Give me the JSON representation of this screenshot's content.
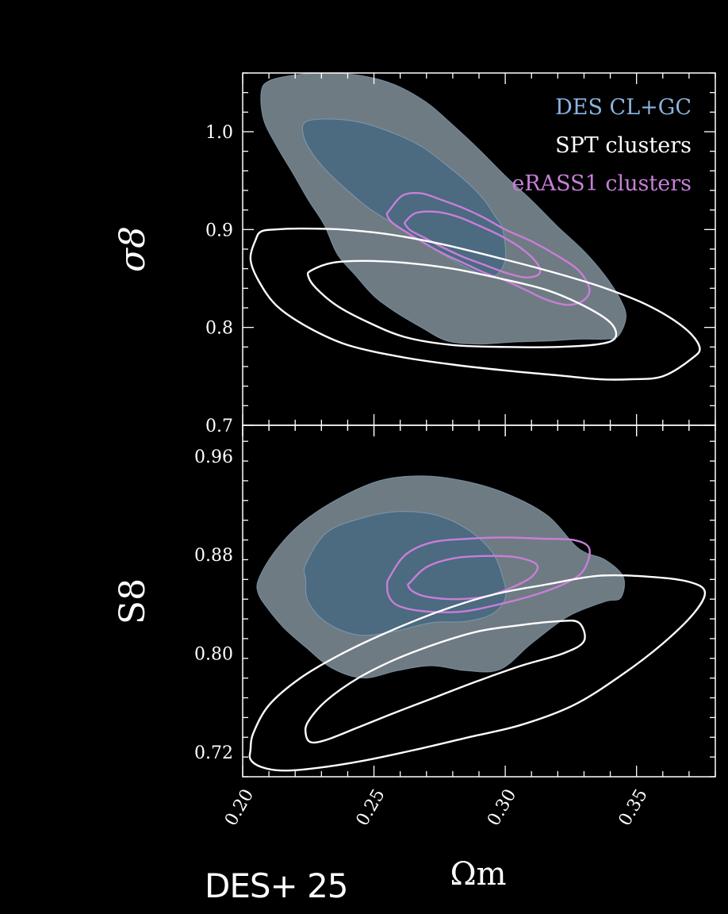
{
  "colors": {
    "background": "#000000",
    "des_outer": "#6f7b83",
    "des_inner": "#4c6a80",
    "des_edge": "#8fb0cc",
    "spt": "#ffffff",
    "erass1": "#c77fd8",
    "axis": "#ffffff"
  },
  "credit": "DES+ 25",
  "chart_data": [
    {
      "type": "contour",
      "title": "",
      "ylabel": "σ8",
      "xlim": [
        0.2,
        0.38
      ],
      "ylim": [
        0.7,
        1.06
      ],
      "yticks": [
        0.7,
        0.8,
        0.9,
        1.0
      ],
      "ytick_labels": [
        "0.7",
        "0.8",
        "0.9",
        "1.0"
      ],
      "legend": {
        "position": "top-right",
        "entries": [
          {
            "label": "DES CL+GC",
            "color": "#8ab4e0"
          },
          {
            "label": "SPT clusters",
            "color": "#ffffff"
          },
          {
            "label": "eRASS1 clusters",
            "color": "#c77fd8"
          }
        ]
      },
      "series": [
        {
          "name": "DES CL+GC 95%",
          "style": "fill",
          "color": "#6f7b83",
          "x": [
            0.207,
            0.21,
            0.22,
            0.232,
            0.246,
            0.258,
            0.27,
            0.28,
            0.29,
            0.3,
            0.31,
            0.32,
            0.33,
            0.338,
            0.344,
            0.346,
            0.343,
            0.338,
            0.328,
            0.316,
            0.303,
            0.29,
            0.278,
            0.268,
            0.258,
            0.25,
            0.243,
            0.236,
            0.231,
            0.225,
            0.219,
            0.213,
            0.208
          ],
          "y": [
            1.04,
            1.052,
            1.058,
            1.06,
            1.057,
            1.048,
            1.03,
            1.007,
            0.982,
            0.955,
            0.93,
            0.903,
            0.878,
            0.853,
            0.828,
            0.81,
            0.791,
            0.788,
            0.788,
            0.786,
            0.785,
            0.783,
            0.786,
            0.8,
            0.816,
            0.832,
            0.853,
            0.875,
            0.905,
            0.93,
            0.958,
            0.985,
            1.012
          ]
        },
        {
          "name": "DES CL+GC 68%",
          "style": "fill",
          "color": "#4c6a80",
          "x": [
            0.224,
            0.232,
            0.244,
            0.256,
            0.268,
            0.278,
            0.286,
            0.292,
            0.296,
            0.299,
            0.3,
            0.296,
            0.288,
            0.278,
            0.268,
            0.258,
            0.248,
            0.24,
            0.232,
            0.226,
            0.223
          ],
          "y": [
            1.01,
            1.013,
            1.01,
            1.0,
            0.985,
            0.965,
            0.947,
            0.93,
            0.914,
            0.9,
            0.87,
            0.853,
            0.858,
            0.872,
            0.888,
            0.905,
            0.922,
            0.94,
            0.96,
            0.98,
            0.998
          ]
        },
        {
          "name": "eRASS1 clusters 95%",
          "style": "line",
          "color": "#c77fd8",
          "x": [
            0.256,
            0.261,
            0.268,
            0.276,
            0.284,
            0.292,
            0.3,
            0.31,
            0.32,
            0.328,
            0.332,
            0.33,
            0.324,
            0.316,
            0.308,
            0.3,
            0.292,
            0.284,
            0.276,
            0.268,
            0.262,
            0.257,
            0.255
          ],
          "y": [
            0.92,
            0.935,
            0.937,
            0.93,
            0.922,
            0.912,
            0.9,
            0.888,
            0.873,
            0.858,
            0.84,
            0.828,
            0.823,
            0.828,
            0.838,
            0.848,
            0.856,
            0.866,
            0.876,
            0.888,
            0.898,
            0.907,
            0.915
          ]
        },
        {
          "name": "eRASS1 clusters 68%",
          "style": "line",
          "color": "#c77fd8",
          "x": [
            0.262,
            0.266,
            0.274,
            0.282,
            0.29,
            0.298,
            0.306,
            0.312,
            0.313,
            0.308,
            0.3,
            0.292,
            0.284,
            0.276,
            0.269,
            0.264,
            0.262
          ],
          "y": [
            0.908,
            0.917,
            0.918,
            0.913,
            0.904,
            0.894,
            0.881,
            0.866,
            0.855,
            0.851,
            0.856,
            0.864,
            0.872,
            0.882,
            0.892,
            0.899,
            0.905
          ]
        },
        {
          "name": "SPT clusters 95%",
          "style": "line",
          "color": "#ffffff",
          "x": [
            0.205,
            0.207,
            0.212,
            0.222,
            0.238,
            0.256,
            0.276,
            0.296,
            0.316,
            0.336,
            0.354,
            0.368,
            0.374,
            0.371,
            0.36,
            0.348,
            0.336,
            0.32,
            0.3,
            0.28,
            0.26,
            0.24,
            0.225,
            0.213,
            0.206,
            0.203
          ],
          "y": [
            0.89,
            0.898,
            0.9,
            0.901,
            0.9,
            0.895,
            0.885,
            0.872,
            0.858,
            0.842,
            0.823,
            0.8,
            0.78,
            0.768,
            0.75,
            0.747,
            0.747,
            0.751,
            0.756,
            0.762,
            0.77,
            0.782,
            0.8,
            0.822,
            0.848,
            0.87
          ]
        },
        {
          "name": "SPT clusters 68%",
          "style": "line",
          "color": "#ffffff",
          "x": [
            0.226,
            0.234,
            0.246,
            0.262,
            0.28,
            0.298,
            0.316,
            0.33,
            0.34,
            0.342,
            0.336,
            0.32,
            0.3,
            0.28,
            0.262,
            0.248,
            0.236,
            0.228,
            0.225
          ],
          "y": [
            0.858,
            0.866,
            0.868,
            0.866,
            0.86,
            0.85,
            0.838,
            0.822,
            0.805,
            0.79,
            0.783,
            0.78,
            0.78,
            0.782,
            0.79,
            0.805,
            0.822,
            0.84,
            0.852
          ]
        }
      ]
    },
    {
      "type": "contour",
      "title": "",
      "xlabel": "Ωm",
      "ylabel": "S8",
      "xlim": [
        0.2,
        0.38
      ],
      "ylim": [
        0.7,
        0.985
      ],
      "xticks": [
        0.2,
        0.25,
        0.3,
        0.35
      ],
      "xtick_labels": [
        "0.20",
        "0.25",
        "0.30",
        "0.35"
      ],
      "yticks": [
        0.72,
        0.8,
        0.88,
        0.96
      ],
      "ytick_labels": [
        "0.72",
        "0.80",
        "0.88",
        "0.96"
      ],
      "series": [
        {
          "name": "DES CL+GC 95%",
          "style": "fill",
          "color": "#6f7b83",
          "x": [
            0.206,
            0.212,
            0.222,
            0.236,
            0.252,
            0.268,
            0.284,
            0.3,
            0.316,
            0.328,
            0.338,
            0.345,
            0.344,
            0.338,
            0.324,
            0.31,
            0.298,
            0.285,
            0.272,
            0.259,
            0.246,
            0.234,
            0.224,
            0.216,
            0.21,
            0.206
          ],
          "y": [
            0.86,
            0.882,
            0.905,
            0.925,
            0.94,
            0.944,
            0.94,
            0.93,
            0.912,
            0.885,
            0.876,
            0.862,
            0.845,
            0.842,
            0.83,
            0.808,
            0.787,
            0.786,
            0.79,
            0.786,
            0.78,
            0.788,
            0.805,
            0.82,
            0.835,
            0.848
          ]
        },
        {
          "name": "DES CL+GC 68%",
          "style": "fill",
          "color": "#4c6a80",
          "x": [
            0.224,
            0.232,
            0.246,
            0.26,
            0.274,
            0.286,
            0.295,
            0.299,
            0.3,
            0.295,
            0.285,
            0.272,
            0.258,
            0.244,
            0.232,
            0.225,
            0.224
          ],
          "y": [
            0.872,
            0.898,
            0.91,
            0.915,
            0.912,
            0.9,
            0.882,
            0.862,
            0.845,
            0.832,
            0.826,
            0.825,
            0.818,
            0.815,
            0.825,
            0.842,
            0.86
          ]
        },
        {
          "name": "eRASS1 clusters 95%",
          "style": "line",
          "color": "#c77fd8",
          "x": [
            0.256,
            0.262,
            0.272,
            0.286,
            0.3,
            0.314,
            0.326,
            0.332,
            0.33,
            0.324,
            0.312,
            0.298,
            0.284,
            0.27,
            0.26,
            0.256,
            0.255
          ],
          "y": [
            0.862,
            0.88,
            0.89,
            0.893,
            0.894,
            0.893,
            0.892,
            0.885,
            0.868,
            0.858,
            0.848,
            0.84,
            0.834,
            0.834,
            0.838,
            0.845,
            0.855
          ]
        },
        {
          "name": "eRASS1 clusters 68%",
          "style": "line",
          "color": "#c77fd8",
          "x": [
            0.264,
            0.27,
            0.28,
            0.292,
            0.304,
            0.312,
            0.31,
            0.302,
            0.292,
            0.28,
            0.27,
            0.265,
            0.263
          ],
          "y": [
            0.858,
            0.87,
            0.877,
            0.879,
            0.878,
            0.872,
            0.862,
            0.853,
            0.846,
            0.844,
            0.846,
            0.85,
            0.855
          ]
        },
        {
          "name": "SPT clusters 95%",
          "style": "line",
          "color": "#ffffff",
          "x": [
            0.204,
            0.21,
            0.222,
            0.238,
            0.256,
            0.276,
            0.296,
            0.316,
            0.336,
            0.356,
            0.37,
            0.376,
            0.372,
            0.36,
            0.344,
            0.326,
            0.306,
            0.286,
            0.266,
            0.246,
            0.228,
            0.215,
            0.207,
            0.203,
            0.203
          ],
          "y": [
            0.735,
            0.758,
            0.78,
            0.8,
            0.818,
            0.835,
            0.848,
            0.856,
            0.863,
            0.862,
            0.858,
            0.85,
            0.833,
            0.808,
            0.782,
            0.758,
            0.742,
            0.732,
            0.722,
            0.713,
            0.707,
            0.705,
            0.708,
            0.714,
            0.722
          ]
        },
        {
          "name": "SPT clusters 68%",
          "style": "line",
          "color": "#ffffff",
          "x": [
            0.225,
            0.232,
            0.244,
            0.258,
            0.274,
            0.29,
            0.306,
            0.32,
            0.328,
            0.33,
            0.322,
            0.306,
            0.29,
            0.274,
            0.258,
            0.244,
            0.232,
            0.226,
            0.224
          ],
          "y": [
            0.745,
            0.762,
            0.78,
            0.795,
            0.808,
            0.818,
            0.823,
            0.826,
            0.825,
            0.81,
            0.8,
            0.79,
            0.778,
            0.765,
            0.752,
            0.74,
            0.73,
            0.728,
            0.735
          ]
        }
      ]
    }
  ]
}
